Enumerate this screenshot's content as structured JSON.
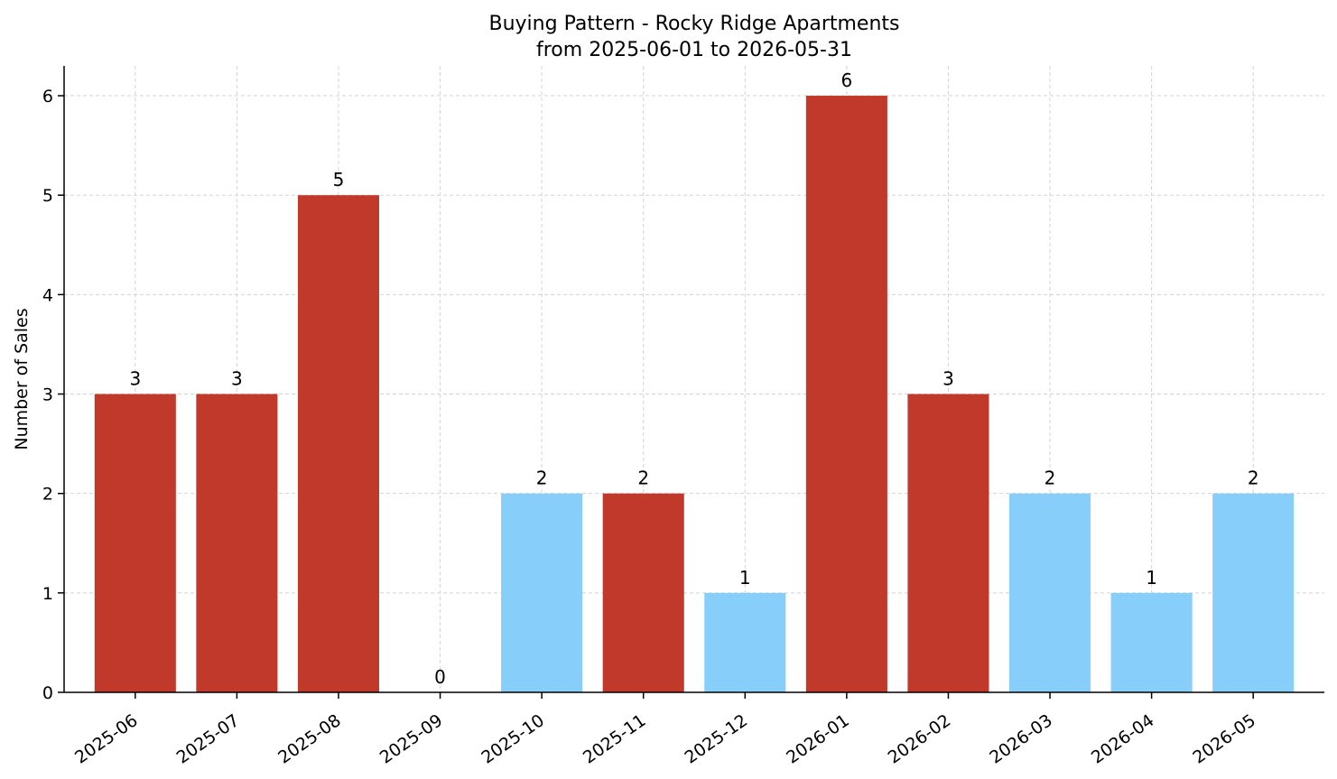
{
  "chart_data": {
    "type": "bar",
    "title": "Buying Pattern - Rocky Ridge Apartments",
    "subtitle": "from 2025-06-01 to 2026-05-31",
    "xlabel": "",
    "ylabel": "Number of Sales",
    "categories": [
      "2025-06",
      "2025-07",
      "2025-08",
      "2025-09",
      "2025-10",
      "2025-11",
      "2025-12",
      "2026-01",
      "2026-02",
      "2026-03",
      "2026-04",
      "2026-05"
    ],
    "values": [
      3,
      3,
      5,
      0,
      2,
      2,
      1,
      6,
      3,
      2,
      1,
      2
    ],
    "bar_colors": [
      "#c0392b",
      "#c0392b",
      "#c0392b",
      "#c0392b",
      "#87cefa",
      "#c0392b",
      "#87cefa",
      "#c0392b",
      "#c0392b",
      "#87cefa",
      "#87cefa",
      "#87cefa"
    ],
    "yticks": [
      "0",
      "1",
      "2",
      "3",
      "4",
      "5",
      "6"
    ],
    "ylim": [
      0,
      6.3
    ],
    "grid": true,
    "legend": "none"
  }
}
